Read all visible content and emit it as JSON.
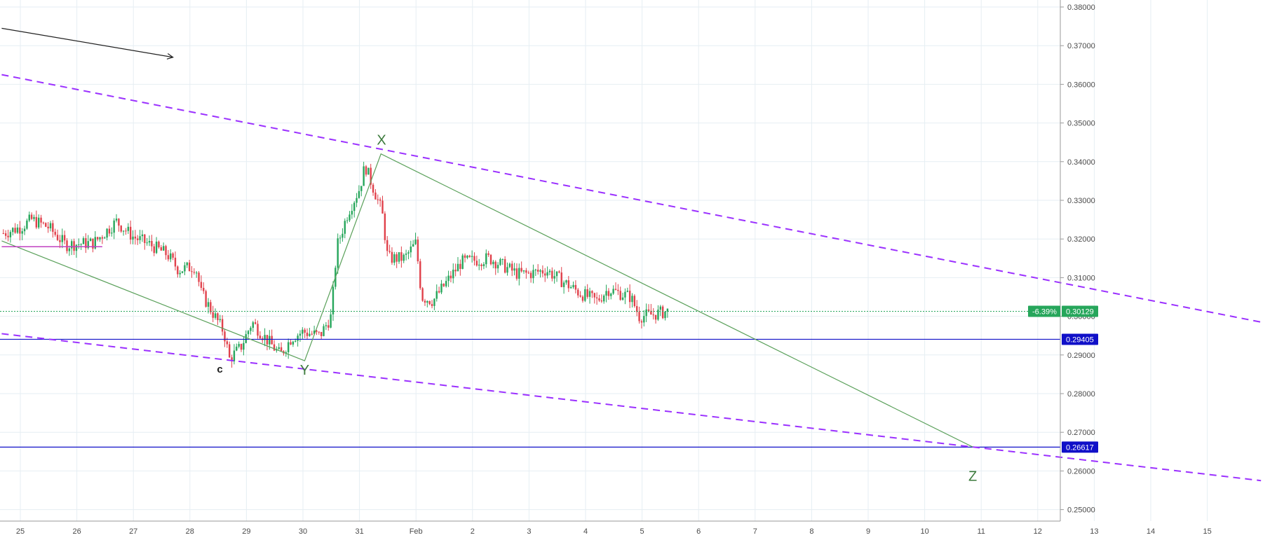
{
  "chart_data": {
    "type": "candlestick",
    "x_ticks": [
      "25",
      "26",
      "27",
      "28",
      "29",
      "30",
      "31",
      "Feb",
      "2",
      "3",
      "4",
      "5",
      "6",
      "7",
      "8",
      "9",
      "10",
      "11",
      "12",
      "13",
      "14",
      "15"
    ],
    "y_ticks": [
      "0.38000",
      "0.37000",
      "0.36000",
      "0.35000",
      "0.34000",
      "0.33000",
      "0.32000",
      "0.31000",
      "0.30000",
      "0.29000",
      "0.28000",
      "0.27000",
      "0.26000",
      "0.25000"
    ],
    "ylim": [
      0.2475,
      0.3815
    ],
    "xlim": [
      -0.33,
      21.95
    ],
    "grid": true,
    "price_path": [
      {
        "x": -0.3,
        "y": 0.3215
      },
      {
        "x": 0.0,
        "y": 0.323
      },
      {
        "x": 0.2,
        "y": 0.325
      },
      {
        "x": 0.5,
        "y": 0.323
      },
      {
        "x": 0.8,
        "y": 0.3185
      },
      {
        "x": 1.3,
        "y": 0.319
      },
      {
        "x": 1.7,
        "y": 0.3245
      },
      {
        "x": 2.0,
        "y": 0.3205
      },
      {
        "x": 2.3,
        "y": 0.3185
      },
      {
        "x": 2.6,
        "y": 0.316
      },
      {
        "x": 2.8,
        "y": 0.312
      },
      {
        "x": 3.1,
        "y": 0.313
      },
      {
        "x": 3.2,
        "y": 0.306
      },
      {
        "x": 3.4,
        "y": 0.301
      },
      {
        "x": 3.6,
        "y": 0.296
      },
      {
        "x": 3.7,
        "y": 0.289
      },
      {
        "x": 3.9,
        "y": 0.292
      },
      {
        "x": 4.1,
        "y": 0.2985
      },
      {
        "x": 4.3,
        "y": 0.295
      },
      {
        "x": 4.6,
        "y": 0.29
      },
      {
        "x": 4.8,
        "y": 0.2945
      },
      {
        "x": 5.0,
        "y": 0.296
      },
      {
        "x": 5.3,
        "y": 0.295
      },
      {
        "x": 5.5,
        "y": 0.3
      },
      {
        "x": 5.6,
        "y": 0.318
      },
      {
        "x": 5.8,
        "y": 0.327
      },
      {
        "x": 6.0,
        "y": 0.333
      },
      {
        "x": 6.1,
        "y": 0.339
      },
      {
        "x": 6.25,
        "y": 0.333
      },
      {
        "x": 6.4,
        "y": 0.327
      },
      {
        "x": 6.5,
        "y": 0.315
      },
      {
        "x": 6.8,
        "y": 0.315
      },
      {
        "x": 7.0,
        "y": 0.319
      },
      {
        "x": 7.1,
        "y": 0.305
      },
      {
        "x": 7.3,
        "y": 0.304
      },
      {
        "x": 7.6,
        "y": 0.31
      },
      {
        "x": 7.8,
        "y": 0.314
      },
      {
        "x": 8.3,
        "y": 0.315
      },
      {
        "x": 8.8,
        "y": 0.311
      },
      {
        "x": 9.0,
        "y": 0.311
      },
      {
        "x": 9.3,
        "y": 0.312
      },
      {
        "x": 9.6,
        "y": 0.309
      },
      {
        "x": 9.9,
        "y": 0.306
      },
      {
        "x": 10.2,
        "y": 0.304
      },
      {
        "x": 10.4,
        "y": 0.307
      },
      {
        "x": 10.8,
        "y": 0.305
      },
      {
        "x": 10.95,
        "y": 0.3
      },
      {
        "x": 11.2,
        "y": 0.3005
      },
      {
        "x": 11.45,
        "y": 0.3013
      }
    ],
    "horizontal_levels": [
      {
        "value": 0.30129,
        "label": "0.30129",
        "change": "-6.39%",
        "color": "#26a65b",
        "style": "dotted"
      },
      {
        "value": 0.29405,
        "label": "0.29405",
        "color": "#1010c8",
        "style": "solid"
      },
      {
        "value": 0.26617,
        "label": "0.26617",
        "color": "#1010c8",
        "style": "solid"
      }
    ],
    "channel_lines": [
      {
        "color": "#9b30ff",
        "style": "dashed",
        "points": [
          {
            "x": -0.33,
            "y": 0.3625
          },
          {
            "x": 21.95,
            "y": 0.2985
          }
        ]
      },
      {
        "color": "#9b30ff",
        "style": "dashed",
        "points": [
          {
            "x": -0.33,
            "y": 0.2955
          },
          {
            "x": 21.95,
            "y": 0.2575
          }
        ]
      }
    ],
    "wave_lines": [
      {
        "color": "#5aa05a",
        "points": [
          {
            "x": -0.33,
            "y": 0.3195
          },
          {
            "x": 5.03,
            "y": 0.2885
          },
          {
            "x": 6.38,
            "y": 0.342
          },
          {
            "x": 16.85,
            "y": 0.2662
          }
        ]
      }
    ],
    "support_segment": {
      "color": "#c040c0",
      "points": [
        {
          "x": -0.33,
          "y": 0.318
        },
        {
          "x": 1.45,
          "y": 0.318
        }
      ]
    },
    "arrow": {
      "color": "#222222",
      "points": [
        {
          "x": -0.33,
          "y": 0.3745
        },
        {
          "x": 2.7,
          "y": 0.367
        }
      ]
    },
    "wave_labels": [
      {
        "text": "X",
        "x": 6.39,
        "y": 0.344
      },
      {
        "text": "Y",
        "x": 5.03,
        "y": 0.2885
      },
      {
        "text": "Z",
        "x": 16.85,
        "y": 0.26
      },
      {
        "text": "c",
        "x": 3.53,
        "y": 0.288
      }
    ]
  }
}
